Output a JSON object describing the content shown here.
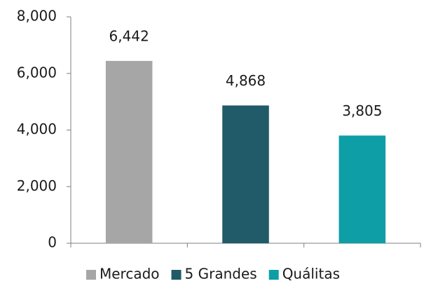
{
  "chart_data": {
    "type": "bar",
    "series": [
      {
        "name": "Mercado",
        "color": "#a6a6a6",
        "values": [
          6442
        ],
        "value_labels": [
          "6,442"
        ]
      },
      {
        "name": "5 Grandes",
        "color": "#215a68",
        "values": [
          4868
        ],
        "value_labels": [
          "4,868"
        ]
      },
      {
        "name": "Quálitas",
        "color": "#0e9ea6",
        "values": [
          3805
        ],
        "value_labels": [
          "3,805"
        ]
      }
    ],
    "ylim": [
      0,
      8000
    ],
    "yticks": [
      0,
      {
        "value": 2000,
        "label": "2,000"
      },
      {
        "value": 4000,
        "label": "4,000"
      },
      {
        "value": 6000,
        "label": "6,000"
      },
      {
        "value": 8000,
        "label": "8,000"
      }
    ],
    "legend": "bottom"
  }
}
